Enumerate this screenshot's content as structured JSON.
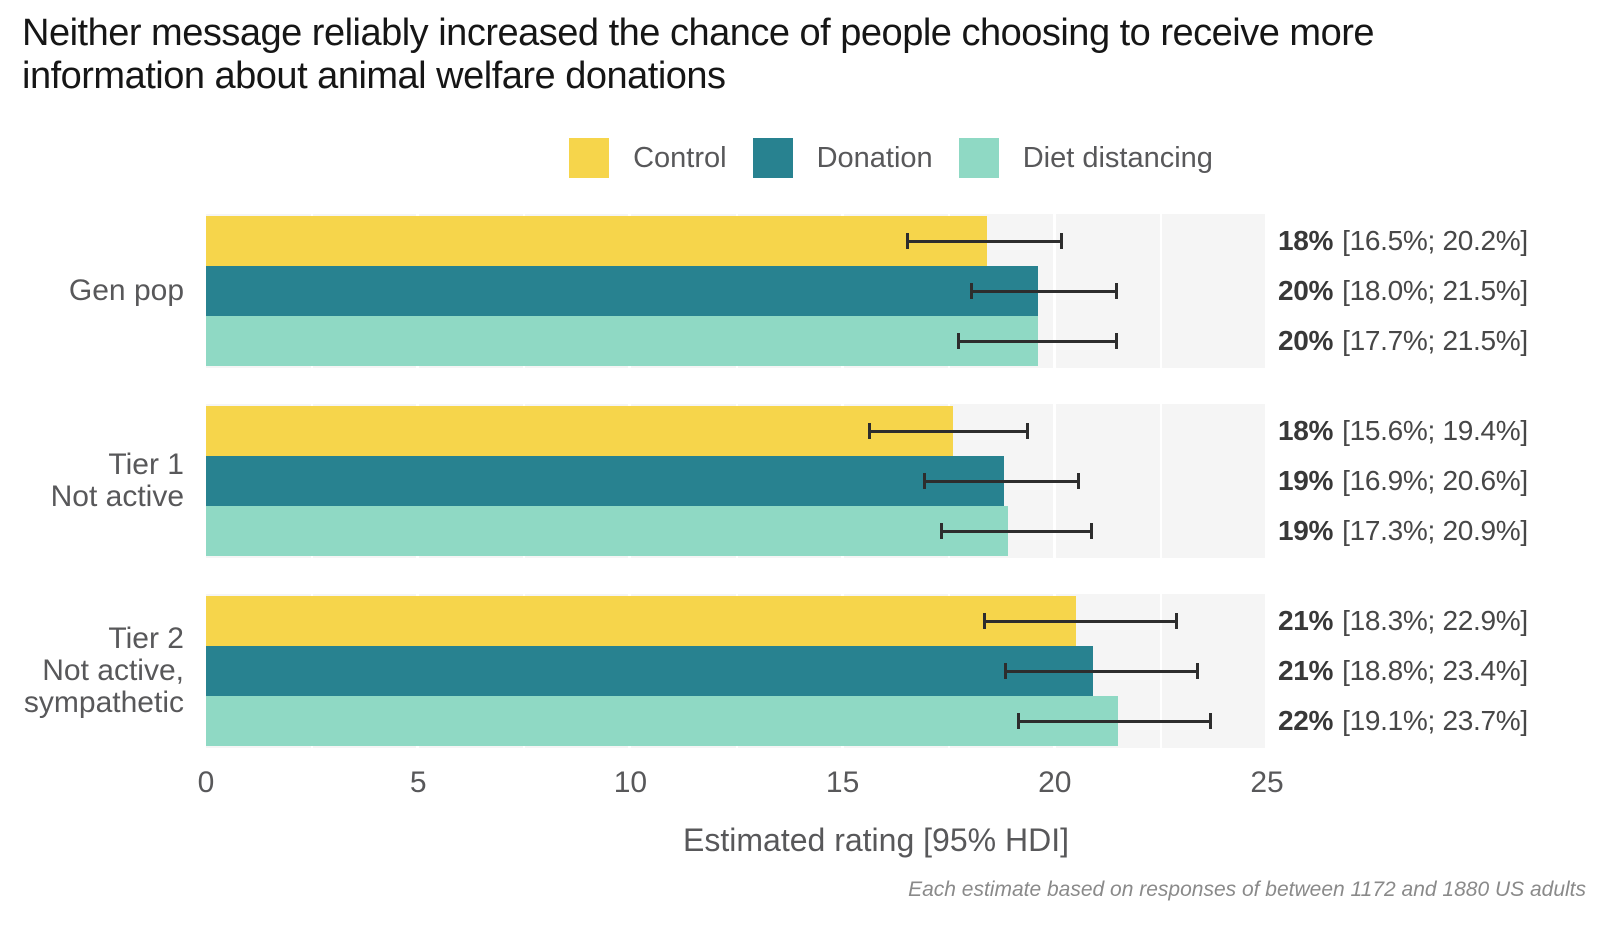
{
  "chart_data": {
    "type": "bar",
    "orientation": "horizontal-grouped-with-error-bars",
    "title": "Neither message reliably increased the chance of people choosing to receive more information about animal welfare donations",
    "xlabel": "Estimated rating [95% HDI]",
    "caption": "Each estimate based on responses of between 1172 and 1880 US adults",
    "xlim": [
      0,
      25
    ],
    "x_ticks": [
      0,
      5,
      10,
      15,
      20,
      25
    ],
    "legend_position": "top-center",
    "grid": "white major gridlines at labeled ticks and minor gridlines at 2.5-unit intervals over light gray facet panels",
    "series": [
      {
        "name": "Control",
        "color": "#F6D54B"
      },
      {
        "name": "Donation",
        "color": "#288290"
      },
      {
        "name": "Diet distancing",
        "color": "#8FD9C4"
      }
    ],
    "groups": [
      {
        "category": "Gen pop",
        "rows": [
          {
            "series": "Control",
            "value": 18.4,
            "hdi_low": 16.5,
            "hdi_high": 20.2,
            "label": "18%",
            "range": "[16.5%; 20.2%]"
          },
          {
            "series": "Donation",
            "value": 19.6,
            "hdi_low": 18.0,
            "hdi_high": 21.5,
            "label": "20%",
            "range": "[18.0%; 21.5%]"
          },
          {
            "series": "Diet distancing",
            "value": 19.6,
            "hdi_low": 17.7,
            "hdi_high": 21.5,
            "label": "20%",
            "range": "[17.7%; 21.5%]"
          }
        ]
      },
      {
        "category": "Tier 1\nNot active",
        "rows": [
          {
            "series": "Control",
            "value": 17.6,
            "hdi_low": 15.6,
            "hdi_high": 19.4,
            "label": "18%",
            "range": "[15.6%; 19.4%]"
          },
          {
            "series": "Donation",
            "value": 18.8,
            "hdi_low": 16.9,
            "hdi_high": 20.6,
            "label": "19%",
            "range": "[16.9%; 20.6%]"
          },
          {
            "series": "Diet distancing",
            "value": 18.9,
            "hdi_low": 17.3,
            "hdi_high": 20.9,
            "label": "19%",
            "range": "[17.3%; 20.9%]"
          }
        ]
      },
      {
        "category": "Tier 2\nNot active,\nsympathetic",
        "rows": [
          {
            "series": "Control",
            "value": 20.5,
            "hdi_low": 18.3,
            "hdi_high": 22.9,
            "label": "21%",
            "range": "[18.3%; 22.9%]"
          },
          {
            "series": "Donation",
            "value": 20.9,
            "hdi_low": 18.8,
            "hdi_high": 23.4,
            "label": "21%",
            "range": "[18.8%; 23.4%]"
          },
          {
            "series": "Diet distancing",
            "value": 21.5,
            "hdi_low": 19.1,
            "hdi_high": 23.7,
            "label": "22%",
            "range": "[19.1%; 23.7%]"
          }
        ]
      }
    ],
    "colors": {
      "panel_bg": "#F5F5F5",
      "gridline": "#FFFFFF",
      "errorbar": "#2D2D2D",
      "title_text": "#161616",
      "axis_text": "#58585A",
      "caption_text": "#8A8A8A"
    }
  }
}
